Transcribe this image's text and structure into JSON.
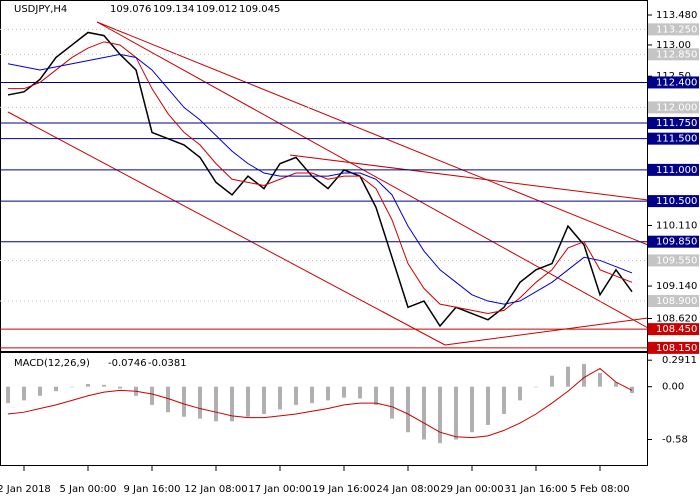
{
  "chart_data": [
    {
      "type": "line",
      "symbol": "USDJPY,H4",
      "ohlc": [
        109.076,
        109.134,
        109.012,
        109.045
      ],
      "categories": [
        null,
        "2 Jan 2018",
        null,
        null,
        null,
        "5 Jan 00:00",
        null,
        null,
        null,
        "9 Jan 16:00",
        null,
        null,
        null,
        "12 Jan 08:00",
        null,
        null,
        null,
        "17 Jan 00:00",
        null,
        null,
        null,
        "19 Jan 16:00",
        null,
        null,
        null,
        "24 Jan 08:00",
        null,
        null,
        null,
        "29 Jan 00:00",
        null,
        null,
        null,
        "31 Jan 16:00",
        null,
        null,
        null,
        "5 Feb 08:00",
        null,
        null
      ],
      "series": [
        {
          "color": "#000000",
          "values": [
            112.2,
            112.25,
            112.45,
            112.8,
            113.0,
            113.2,
            113.15,
            112.85,
            112.6,
            111.6,
            111.5,
            111.4,
            111.2,
            110.8,
            110.6,
            110.9,
            110.7,
            111.1,
            111.2,
            110.9,
            110.7,
            111.0,
            110.9,
            110.4,
            109.6,
            108.8,
            108.9,
            108.5,
            108.8,
            108.7,
            108.6,
            108.8,
            109.2,
            109.4,
            109.5,
            110.1,
            109.8,
            109.0,
            109.4,
            109.05
          ]
        },
        {
          "color": "#cc0000",
          "values": [
            112.3,
            112.3,
            112.4,
            112.6,
            112.8,
            112.95,
            113.05,
            113.0,
            112.8,
            112.3,
            111.9,
            111.6,
            111.4,
            111.1,
            110.85,
            110.8,
            110.75,
            110.85,
            110.95,
            110.95,
            110.85,
            110.9,
            110.9,
            110.7,
            110.2,
            109.5,
            109.1,
            108.85,
            108.8,
            108.75,
            108.7,
            108.75,
            108.95,
            109.2,
            109.4,
            109.75,
            109.85,
            109.4,
            109.3,
            109.2
          ]
        },
        {
          "color": "#0000cc",
          "values": [
            112.7,
            112.65,
            112.6,
            112.65,
            112.7,
            112.75,
            112.8,
            112.85,
            112.8,
            112.6,
            112.3,
            112.0,
            111.8,
            111.55,
            111.3,
            111.1,
            110.95,
            110.9,
            110.9,
            110.9,
            110.9,
            110.95,
            110.95,
            110.85,
            110.6,
            110.1,
            109.7,
            109.4,
            109.2,
            109.0,
            108.9,
            108.85,
            108.9,
            109.05,
            109.2,
            109.4,
            109.6,
            109.55,
            109.45,
            109.35
          ]
        }
      ],
      "ylim": [
        108.1,
        113.72
      ],
      "yticks": [
        {
          "value": 113.48,
          "label": "113.480"
        },
        {
          "value": 113.0,
          "label": "113.00"
        },
        {
          "value": 112.5,
          "label": "112.50"
        },
        {
          "value": 110.11,
          "label": "110.110"
        },
        {
          "value": 109.14,
          "label": "109.140"
        },
        {
          "value": 108.62,
          "label": "108.620"
        }
      ],
      "levels": [
        {
          "value": 113.25,
          "label": "113.250",
          "color": "#c4c4c4"
        },
        {
          "value": 112.85,
          "label": "112.850",
          "color": "#c4c4c4"
        },
        {
          "value": 112.4,
          "label": "112.400",
          "color": "#00008b"
        },
        {
          "value": 112.0,
          "label": "112.000",
          "color": "#c4c4c4"
        },
        {
          "value": 111.75,
          "label": "111.750",
          "color": "#00008b"
        },
        {
          "value": 111.5,
          "label": "111.500",
          "color": "#00008b"
        },
        {
          "value": 111.0,
          "label": "111.000",
          "color": "#00008b"
        },
        {
          "value": 110.5,
          "label": "110.500",
          "color": "#00008b"
        },
        {
          "value": 109.85,
          "label": "109.850",
          "color": "#00008b"
        },
        {
          "value": 109.55,
          "label": "109.550",
          "color": "#c4c4c4"
        },
        {
          "value": 108.9,
          "label": "108.900",
          "color": "#c4c4c4"
        },
        {
          "value": 108.45,
          "label": "108.450",
          "color": "#cc0000"
        },
        {
          "value": 108.15,
          "label": "108.150",
          "color": "#cc0000"
        }
      ]
    },
    {
      "type": "macd",
      "title": "MACD(12,26,9)",
      "readings": [
        -0.0746,
        -0.0381
      ],
      "series": [
        {
          "color": "#b0b0b0",
          "values": [
            -0.18,
            -0.15,
            -0.1,
            -0.05,
            0.0,
            0.03,
            0.02,
            -0.02,
            -0.1,
            -0.2,
            -0.28,
            -0.33,
            -0.35,
            -0.38,
            -0.38,
            -0.33,
            -0.3,
            -0.25,
            -0.2,
            -0.18,
            -0.15,
            -0.12,
            -0.13,
            -0.2,
            -0.35,
            -0.5,
            -0.58,
            -0.62,
            -0.58,
            -0.5,
            -0.42,
            -0.3,
            -0.15,
            0.0,
            0.12,
            0.22,
            0.25,
            0.15,
            0.05,
            -0.07
          ]
        },
        {
          "color": "#cc0000",
          "values": [
            -0.3,
            -0.28,
            -0.24,
            -0.2,
            -0.15,
            -0.1,
            -0.06,
            -0.04,
            -0.05,
            -0.08,
            -0.13,
            -0.19,
            -0.24,
            -0.28,
            -0.32,
            -0.34,
            -0.34,
            -0.32,
            -0.3,
            -0.27,
            -0.24,
            -0.2,
            -0.18,
            -0.18,
            -0.22,
            -0.3,
            -0.4,
            -0.5,
            -0.55,
            -0.56,
            -0.54,
            -0.48,
            -0.4,
            -0.3,
            -0.18,
            -0.05,
            0.1,
            0.2,
            0.05,
            -0.04
          ]
        }
      ],
      "ylim": [
        -0.86,
        0.37
      ],
      "yticks": [
        0.2911,
        {
          "value": 0,
          "label": "0.00"
        },
        -0.58
      ]
    }
  ]
}
